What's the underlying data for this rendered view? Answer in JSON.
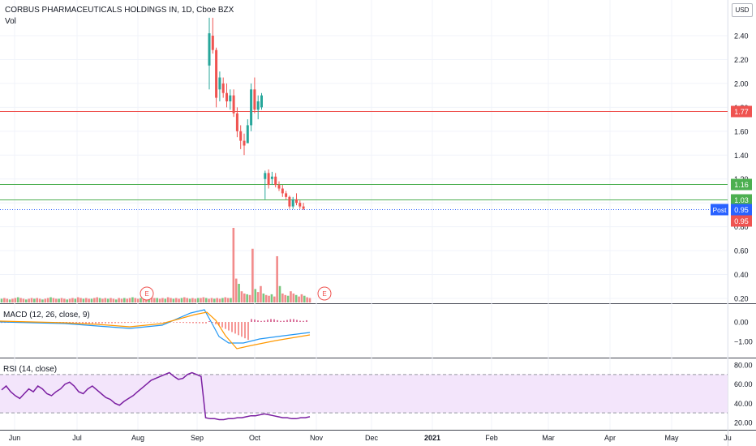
{
  "header": {
    "title": "CORBUS PHARMACEUTICALS HOLDINGS IN, 1D, Cboe BZX",
    "vol_label": "Vol",
    "currency": "USD"
  },
  "indicators": {
    "macd_label": "MACD (12, 26, close, 9)",
    "rsi_label": "RSI (14, close)"
  },
  "colors": {
    "up": "#26a69a",
    "down": "#ef5350",
    "vol_up": "#78c77f",
    "vol_down": "#f28b8b",
    "resistance": "#ef5350",
    "support": "#4caf50",
    "post": "#2962ff",
    "macd_line": "#2196f3",
    "signal_line": "#ff9800",
    "rsi_line": "#7b1fa2",
    "rsi_band": "#f3e5fb"
  },
  "chart_data": [
    {
      "type": "candlestick",
      "title": "CORBUS PHARMACEUTICALS HOLDINGS IN, 1D, Cboe BZX",
      "ylim": [
        0.1,
        2.6
      ],
      "y_ticks": [
        "2.40",
        "2.20",
        "2.00",
        "1.80",
        "1.60",
        "1.40",
        "1.20",
        "1.00",
        "0.80",
        "0.60",
        "0.40",
        "0.20"
      ],
      "x_ticks": [
        "Jun",
        "Jul",
        "Aug",
        "Sep",
        "Oct",
        "Nov",
        "Dec",
        "2021",
        "Feb",
        "Mar",
        "Apr",
        "May",
        "Ju"
      ],
      "horizontal_lines": [
        {
          "value": 1.77,
          "label": "1.77",
          "kind": "resistance"
        },
        {
          "value": 1.16,
          "label": "1.16",
          "kind": "support"
        },
        {
          "value": 1.03,
          "label": "1.03",
          "kind": "support"
        }
      ],
      "post_price": {
        "value": 0.95,
        "tag": "Post",
        "label": "0.95"
      },
      "last_price": {
        "value": 0.95,
        "label": "0.95"
      },
      "earnings_markers": [
        "E",
        "E"
      ],
      "candles": [
        {
          "o": 2.15,
          "h": 2.55,
          "l": 1.95,
          "c": 2.42
        },
        {
          "o": 2.4,
          "h": 2.55,
          "l": 2.25,
          "c": 2.28
        },
        {
          "o": 2.28,
          "h": 2.3,
          "l": 1.8,
          "c": 1.88
        },
        {
          "o": 1.95,
          "h": 2.1,
          "l": 1.85,
          "c": 2.05
        },
        {
          "o": 2.0,
          "h": 2.05,
          "l": 1.88,
          "c": 1.92
        },
        {
          "o": 1.92,
          "h": 2.0,
          "l": 1.8,
          "c": 1.85
        },
        {
          "o": 1.85,
          "h": 1.95,
          "l": 1.78,
          "c": 1.9
        },
        {
          "o": 1.9,
          "h": 1.95,
          "l": 1.72,
          "c": 1.75
        },
        {
          "o": 1.75,
          "h": 1.8,
          "l": 1.55,
          "c": 1.6
        },
        {
          "o": 1.6,
          "h": 1.65,
          "l": 1.45,
          "c": 1.52
        },
        {
          "o": 1.52,
          "h": 1.58,
          "l": 1.4,
          "c": 1.48
        },
        {
          "o": 1.5,
          "h": 1.7,
          "l": 1.5,
          "c": 1.65
        },
        {
          "o": 1.65,
          "h": 2.0,
          "l": 1.6,
          "c": 1.95
        },
        {
          "o": 1.95,
          "h": 2.05,
          "l": 1.75,
          "c": 1.78
        },
        {
          "o": 1.78,
          "h": 1.9,
          "l": 1.7,
          "c": 1.85
        },
        {
          "o": 1.8,
          "h": 1.92,
          "l": 1.78,
          "c": 1.9
        },
        {
          "o": 1.2,
          "h": 1.27,
          "l": 1.03,
          "c": 1.25
        },
        {
          "o": 1.25,
          "h": 1.28,
          "l": 1.12,
          "c": 1.15
        },
        {
          "o": 1.2,
          "h": 1.26,
          "l": 1.15,
          "c": 1.22
        },
        {
          "o": 1.22,
          "h": 1.25,
          "l": 1.13,
          "c": 1.15
        },
        {
          "o": 1.15,
          "h": 1.18,
          "l": 1.1,
          "c": 1.12
        },
        {
          "o": 1.12,
          "h": 1.15,
          "l": 1.05,
          "c": 1.08
        },
        {
          "o": 1.08,
          "h": 1.1,
          "l": 1.03,
          "c": 1.05
        },
        {
          "o": 1.05,
          "h": 1.06,
          "l": 0.95,
          "c": 0.97
        },
        {
          "o": 0.97,
          "h": 1.05,
          "l": 0.95,
          "c": 1.03
        },
        {
          "o": 1.03,
          "h": 1.08,
          "l": 0.98,
          "c": 1.0
        },
        {
          "o": 1.0,
          "h": 1.02,
          "l": 0.95,
          "c": 0.97
        },
        {
          "o": 0.97,
          "h": 1.0,
          "l": 0.94,
          "c": 0.95
        }
      ]
    },
    {
      "type": "bar",
      "title": "Vol",
      "values_relative": [
        0.05,
        0.06,
        0.05,
        0.04,
        0.05,
        0.06,
        0.07,
        0.06,
        0.05,
        0.04,
        0.05,
        0.06,
        0.05,
        0.06,
        0.05,
        0.04,
        0.05,
        0.06,
        0.07,
        0.06,
        0.05,
        0.05,
        0.06,
        0.05,
        0.04,
        0.05,
        0.06,
        0.05,
        0.07,
        0.06,
        0.05,
        0.06,
        0.05,
        0.05,
        0.06,
        0.07,
        0.06,
        0.05,
        0.06,
        0.05,
        0.06,
        0.05,
        0.04,
        0.06,
        0.05,
        0.06,
        0.05,
        0.06,
        0.07,
        0.06,
        0.05,
        0.06,
        0.05,
        0.06,
        0.05,
        0.07,
        0.06,
        0.06,
        0.05,
        0.06,
        0.05,
        0.07,
        0.06,
        0.05,
        0.06,
        0.05,
        0.06,
        0.07,
        0.06,
        0.05,
        0.06,
        0.05,
        0.06,
        0.06,
        0.07,
        0.06,
        0.05,
        0.06,
        0.05,
        0.06,
        0.05,
        0.06,
        0.07,
        0.06,
        0.06,
        1.0,
        0.32,
        0.25,
        0.15,
        0.12,
        0.11,
        0.1,
        0.72,
        0.18,
        0.14,
        0.22,
        0.12,
        0.1,
        0.09,
        0.11,
        0.08,
        0.62,
        0.22,
        0.12,
        0.1,
        0.09,
        0.15,
        0.12,
        0.1,
        0.08,
        0.11,
        0.09,
        0.07,
        0.06
      ]
    },
    {
      "type": "line",
      "title": "MACD (12, 26, close, 9)",
      "y_ticks": [
        "0.00",
        "−1.00"
      ],
      "ylim": [
        -1.7,
        0.8
      ]
    },
    {
      "type": "line",
      "title": "RSI (14, close)",
      "y_ticks": [
        "80.00",
        "60.00",
        "40.00",
        "20.00"
      ],
      "ylim": [
        15,
        88
      ],
      "band": [
        30,
        70
      ],
      "values": [
        54,
        58,
        52,
        48,
        45,
        50,
        55,
        52,
        58,
        55,
        50,
        48,
        52,
        55,
        60,
        62,
        58,
        52,
        50,
        55,
        58,
        54,
        50,
        46,
        44,
        40,
        38,
        42,
        45,
        48,
        52,
        56,
        60,
        64,
        66,
        68,
        70,
        72,
        68,
        65,
        66,
        70,
        72,
        70,
        68,
        25,
        24,
        24,
        23,
        23,
        24,
        24,
        25,
        25,
        26,
        27,
        27,
        28,
        29,
        28,
        27,
        26,
        25,
        25,
        24,
        24,
        25,
        25,
        26
      ]
    }
  ]
}
